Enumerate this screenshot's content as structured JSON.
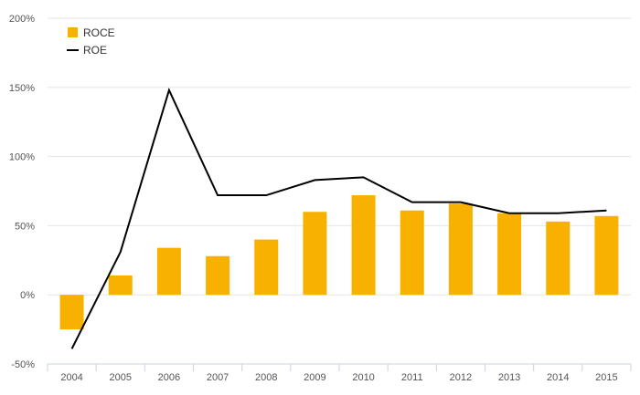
{
  "chart_data": {
    "type": "bar",
    "categories": [
      "2004",
      "2005",
      "2006",
      "2007",
      "2008",
      "2009",
      "2010",
      "2011",
      "2012",
      "2013",
      "2014",
      "2015"
    ],
    "series": [
      {
        "name": "ROCE",
        "type": "bar",
        "color": "#F9B100",
        "values": [
          -25,
          14,
          34,
          28,
          40,
          60,
          72,
          61,
          66,
          59,
          53,
          57
        ]
      },
      {
        "name": "ROE",
        "type": "line",
        "color": "#000000",
        "values": [
          -39,
          31,
          148,
          72,
          72,
          83,
          85,
          67,
          67,
          59,
          59,
          61
        ]
      }
    ],
    "y_ticks": [
      "200%",
      "150%",
      "100%",
      "50%",
      "0%",
      "-50%"
    ],
    "ylim": [
      -50,
      200
    ],
    "grid": true,
    "legend_position": "top-left"
  }
}
